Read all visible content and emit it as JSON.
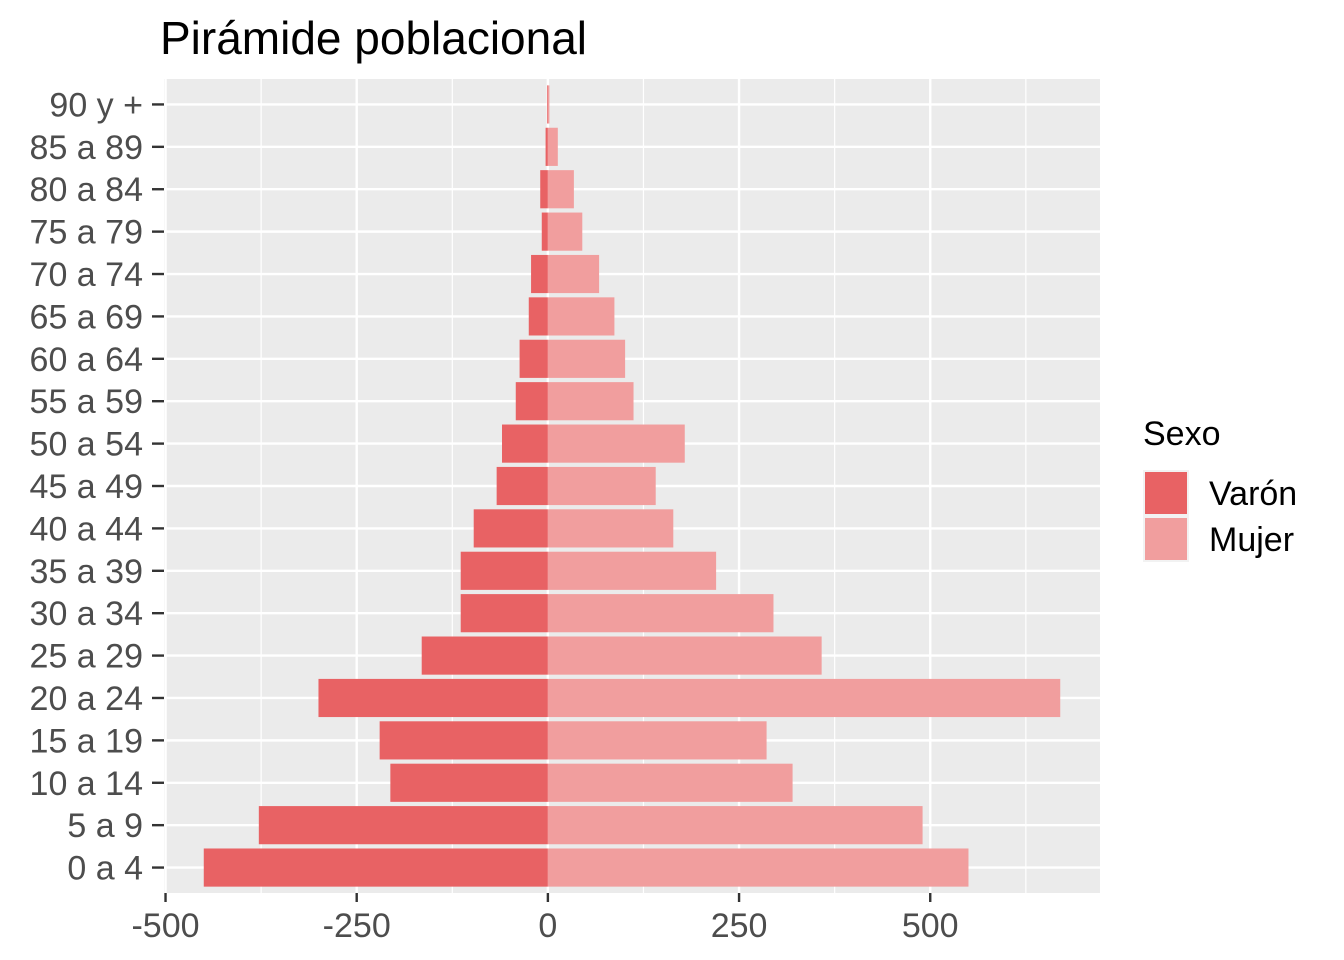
{
  "chart_data": {
    "type": "bar",
    "orientation": "horizontal",
    "title": "Pirámide poblacional",
    "categories": [
      "0 a 4",
      "5 a 9",
      "10 a 14",
      "15 a 19",
      "20 a 24",
      "25 a 29",
      "30 a 34",
      "35 a 39",
      "40 a 44",
      "45 a 49",
      "50 a 54",
      "55 a 59",
      "60 a 64",
      "65 a 69",
      "70 a 74",
      "75 a 79",
      "80 a 84",
      "85 a 89",
      "90 y +"
    ],
    "series": [
      {
        "name": "Varón",
        "color": "#e86264",
        "values": [
          -450,
          -378,
          -206,
          -220,
          -300,
          -165,
          -114,
          -114,
          -97,
          -67,
          -60,
          -42,
          -37,
          -25,
          -22,
          -8,
          -10,
          -3,
          -1
        ]
      },
      {
        "name": "Mujer",
        "color": "#f19e9e",
        "values": [
          550,
          490,
          320,
          286,
          670,
          358,
          295,
          220,
          164,
          141,
          179,
          112,
          101,
          87,
          67,
          45,
          34,
          13,
          2
        ]
      }
    ],
    "x_ticks": [
      -500,
      -250,
      0,
      250,
      500
    ],
    "x_tick_labels": [
      "-500",
      "-250",
      "0",
      "250",
      "500"
    ],
    "xlim": [
      -502,
      722
    ],
    "grid": true,
    "legend": {
      "title": "Sexo",
      "position": "right"
    }
  }
}
